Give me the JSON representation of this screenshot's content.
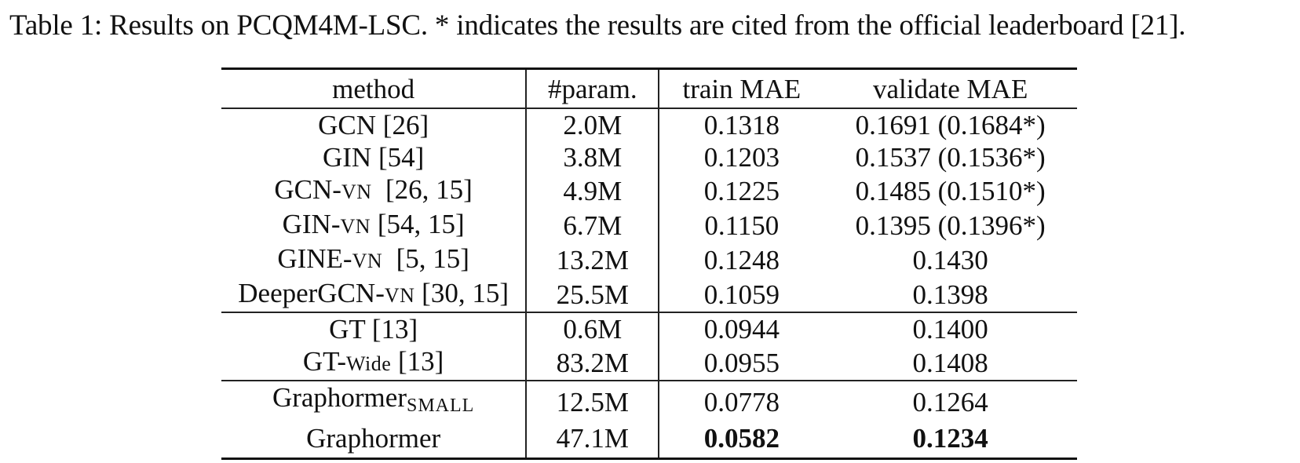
{
  "caption": "Table 1: Results on PCQM4M-LSC. *  indicates the results are cited from the official leaderboard [21].",
  "table": {
    "headers": {
      "method": "method",
      "param": "#param.",
      "train": "train MAE",
      "validate": "validate MAE"
    },
    "rows": [
      {
        "method_main": "GCN [26]",
        "method_sc": "",
        "method_tail": "",
        "param": "2.0M",
        "train": "0.1318",
        "validate": "0.1691 (0.1684*)"
      },
      {
        "method_main": "GIN [54]",
        "method_sc": "",
        "method_tail": "",
        "param": "3.8M",
        "train": "0.1203",
        "validate": "0.1537 (0.1536*)"
      },
      {
        "method_main": "GCN-",
        "method_sc": "VN",
        "method_tail": "  [26, 15]",
        "param": "4.9M",
        "train": "0.1225",
        "validate": "0.1485 (0.1510*)"
      },
      {
        "method_main": "GIN-",
        "method_sc": "VN",
        "method_tail": " [54, 15]",
        "param": "6.7M",
        "train": "0.1150",
        "validate": "0.1395 (0.1396*)"
      },
      {
        "method_main": "GINE-",
        "method_sc": "VN",
        "method_tail": "  [5, 15]",
        "param": "13.2M",
        "train": "0.1248",
        "validate": "0.1430"
      },
      {
        "method_main": "DeeperGCN-",
        "method_sc": "VN",
        "method_tail": " [30, 15]",
        "param": "25.5M",
        "train": "0.1059",
        "validate": "0.1398"
      },
      {
        "method_main": "GT [13]",
        "method_sc": "",
        "method_tail": "",
        "param": "0.6M",
        "train": "0.0944",
        "validate": "0.1400"
      },
      {
        "method_main": "GT-",
        "method_sc": "Wide",
        "method_tail": " [13]",
        "param": "83.2M",
        "train": "0.0955",
        "validate": "0.1408"
      },
      {
        "method_main": "Graphormer",
        "method_sub": "SMALL",
        "param": "12.5M",
        "train": "0.0778",
        "validate": "0.1264"
      },
      {
        "method_main": "Graphormer",
        "param": "47.1M",
        "train": "0.0582",
        "validate": "0.1234",
        "bold_train": true,
        "bold_validate": true
      }
    ]
  }
}
